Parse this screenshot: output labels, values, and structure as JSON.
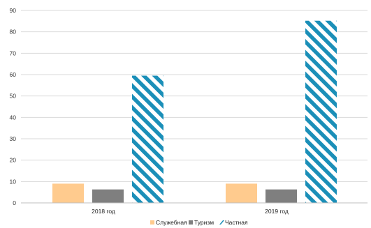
{
  "chart_data": {
    "type": "bar",
    "categories": [
      "2018 год",
      "2019 год"
    ],
    "series": [
      {
        "name": "Служебная",
        "values": [
          9,
          9
        ],
        "color": "#FFCB8E",
        "pattern": "solid"
      },
      {
        "name": "Туризм",
        "values": [
          6.3,
          6.3
        ],
        "color": "#7F7F7F",
        "pattern": "solid"
      },
      {
        "name": "Частная",
        "values": [
          59.5,
          85.2
        ],
        "color": "#1B8FB8",
        "pattern": "diagonal-stripes"
      }
    ],
    "ylim": [
      0,
      90
    ],
    "yticks": [
      0,
      10,
      20,
      30,
      40,
      50,
      60,
      70,
      80,
      90
    ],
    "grid": true,
    "legend": "bottom-center",
    "title": "",
    "xlabel": "",
    "ylabel": ""
  }
}
